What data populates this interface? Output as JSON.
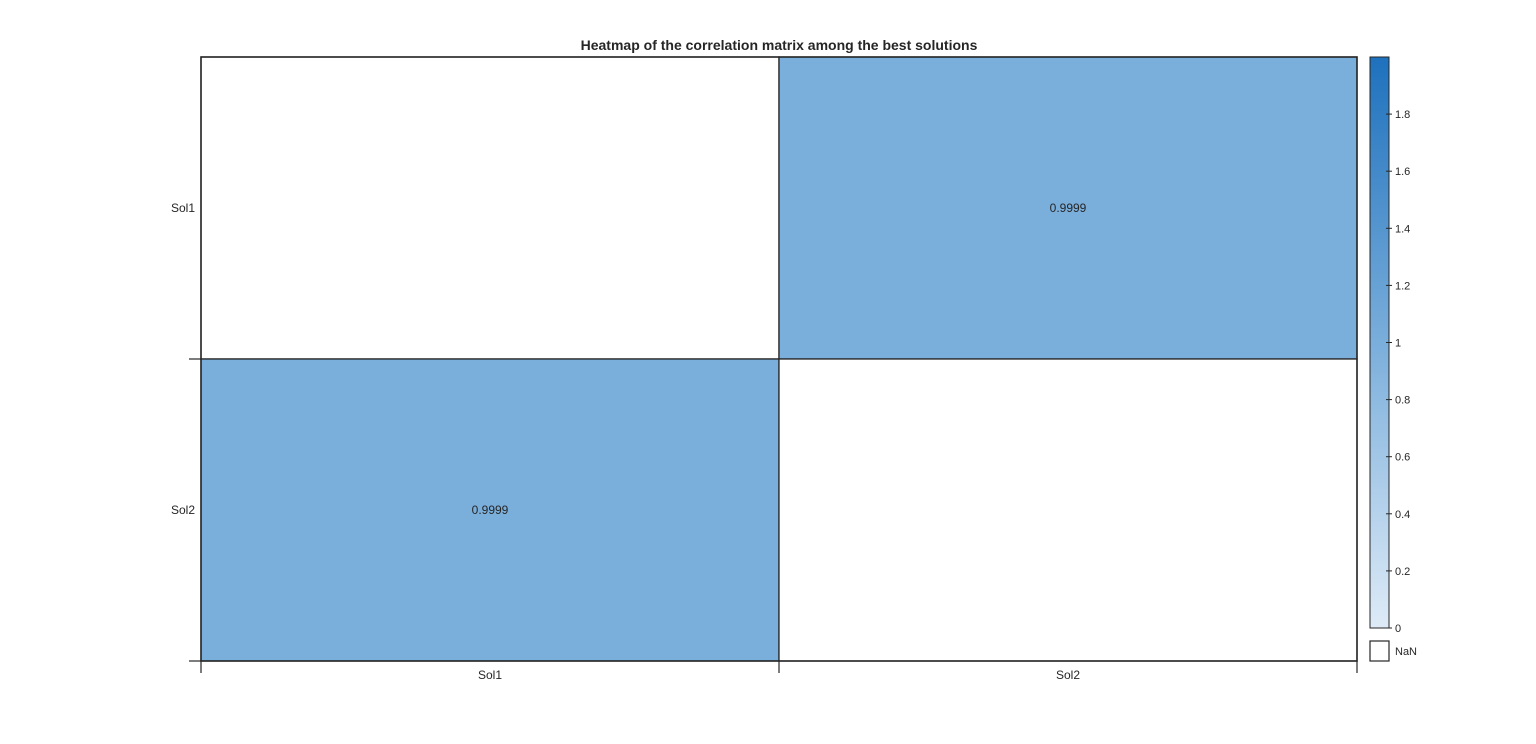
{
  "chart_data": {
    "type": "heatmap",
    "title": "Heatmap of the correlation matrix among the best solutions",
    "xlabel": "",
    "ylabel": "",
    "x_categories": [
      "Sol1",
      "Sol2"
    ],
    "y_categories": [
      "Sol1",
      "Sol2"
    ],
    "values": [
      [
        null,
        0.9999
      ],
      [
        0.9999,
        null
      ]
    ],
    "cell_labels": [
      [
        "",
        "0.9999"
      ],
      [
        "0.9999",
        ""
      ]
    ],
    "colorbar": {
      "range": [
        0,
        2
      ],
      "ticks": [
        0,
        0.2,
        0.4,
        0.6,
        0.8,
        1,
        1.2,
        1.4,
        1.6,
        1.8
      ],
      "tick_labels": [
        "0",
        "0.2",
        "0.4",
        "0.6",
        "0.8",
        "1",
        "1.2",
        "1.4",
        "1.6",
        "1.8"
      ],
      "color_low": "#deebf7",
      "color_high": "#1e71bd",
      "missing_label": "NaN",
      "missing_color": "#ffffff"
    },
    "grid": false,
    "colorbar_placement": "right"
  }
}
